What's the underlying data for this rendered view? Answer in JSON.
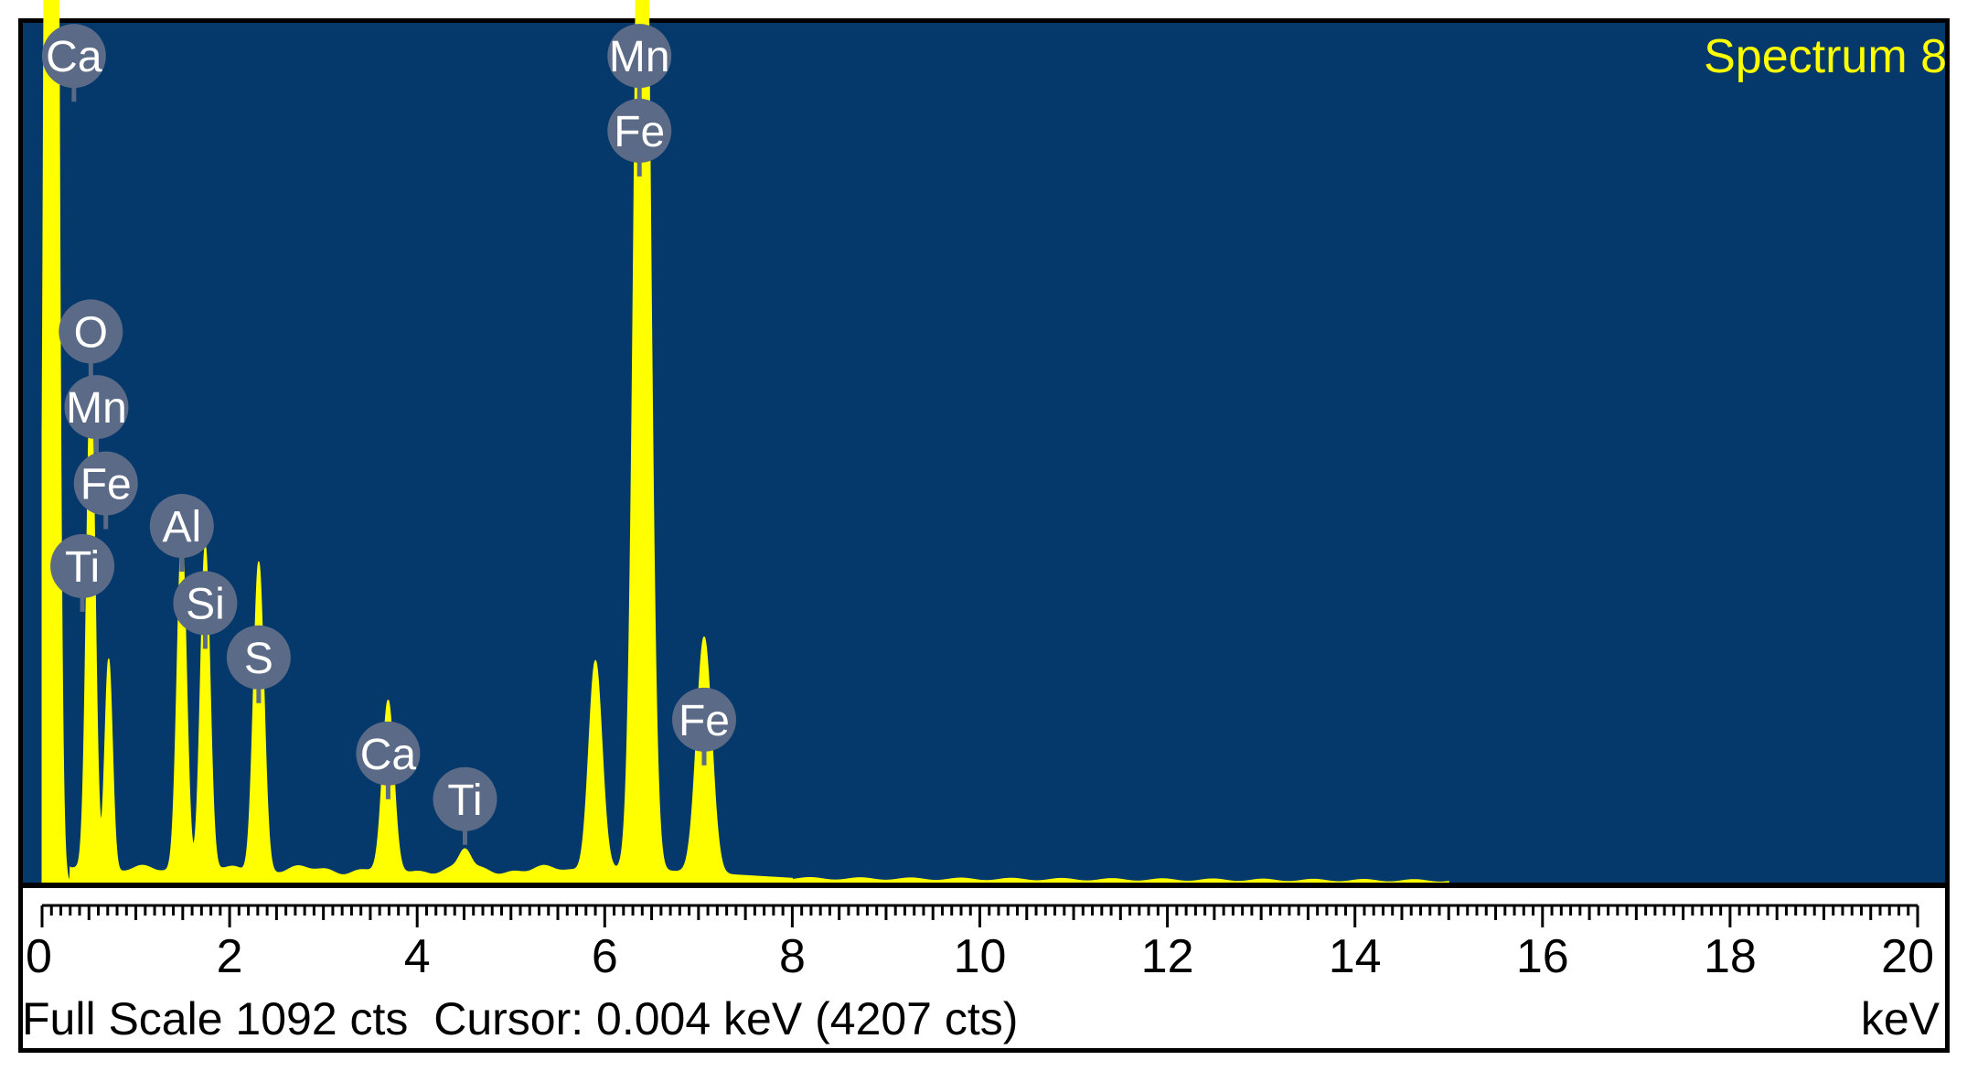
{
  "chart_data": {
    "type": "line",
    "title": "Spectrum 8",
    "xlabel": "keV",
    "ylabel": "",
    "xlim": [
      0,
      20
    ],
    "ylim": [
      0,
      1092
    ],
    "x_ticks": [
      "0",
      "2",
      "4",
      "6",
      "8",
      "10",
      "12",
      "14",
      "16",
      "18",
      "20"
    ],
    "colors": {
      "background": "#05386b",
      "spectrum": "#ffff00",
      "label_bg": "#5b6a86",
      "label_text": "#ffffff"
    },
    "peaks": [
      {
        "energy": 0.1,
        "counts": 4207,
        "width": 0.05
      },
      {
        "energy": 0.52,
        "counts": 640,
        "width": 0.045
      },
      {
        "energy": 0.71,
        "counts": 270,
        "width": 0.04
      },
      {
        "energy": 1.49,
        "counts": 430,
        "width": 0.05
      },
      {
        "energy": 1.74,
        "counts": 410,
        "width": 0.05
      },
      {
        "energy": 2.31,
        "counts": 395,
        "width": 0.055
      },
      {
        "energy": 3.69,
        "counts": 210,
        "width": 0.06
      },
      {
        "energy": 4.51,
        "counts": 25,
        "width": 0.06
      },
      {
        "energy": 5.9,
        "counts": 270,
        "width": 0.07
      },
      {
        "energy": 6.4,
        "counts": 1700,
        "width": 0.075
      },
      {
        "energy": 7.06,
        "counts": 300,
        "width": 0.08
      }
    ],
    "element_labels": [
      {
        "element": "Ca",
        "energy": 0.34,
        "counts": 1050
      },
      {
        "element": "Mn",
        "energy": 6.37,
        "counts": 1050
      },
      {
        "element": "Fe",
        "energy": 6.37,
        "counts": 955
      },
      {
        "element": "O",
        "energy": 0.52,
        "counts": 700
      },
      {
        "element": "Mn",
        "energy": 0.58,
        "counts": 604
      },
      {
        "element": "Fe",
        "energy": 0.68,
        "counts": 507
      },
      {
        "element": "Ti",
        "energy": 0.43,
        "counts": 402
      },
      {
        "element": "Al",
        "energy": 1.49,
        "counts": 453
      },
      {
        "element": "Si",
        "energy": 1.74,
        "counts": 355
      },
      {
        "element": "S",
        "energy": 2.31,
        "counts": 286
      },
      {
        "element": "Ca",
        "energy": 3.69,
        "counts": 164
      },
      {
        "element": "Ti",
        "energy": 4.51,
        "counts": 106
      },
      {
        "element": "Fe",
        "energy": 7.06,
        "counts": 207
      }
    ]
  },
  "status": {
    "full_scale": "Full Scale 1092 cts",
    "cursor": "Cursor: 0.004 keV (4207 cts)",
    "unit": "keV"
  }
}
